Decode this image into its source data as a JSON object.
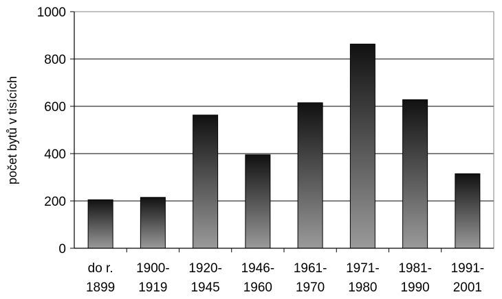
{
  "chart_data": {
    "type": "bar",
    "title": "",
    "xlabel": "",
    "ylabel": "počet bytů v tisících",
    "ylim": [
      0,
      1000
    ],
    "yticks": [
      0,
      200,
      400,
      600,
      800,
      1000
    ],
    "grid": "horizontal",
    "categories": [
      [
        "do r.",
        "1899"
      ],
      [
        "1900-",
        "1919"
      ],
      [
        "1920-",
        "1945"
      ],
      [
        "1946-",
        "1960"
      ],
      [
        "1961-",
        "1970"
      ],
      [
        "1971-",
        "1980"
      ],
      [
        "1981-",
        "1990"
      ],
      [
        "1991-",
        "2001"
      ]
    ],
    "values": [
      205,
      215,
      563,
      395,
      615,
      863,
      628,
      315
    ],
    "bar_gradient": [
      "#111111",
      "#9a9a9a"
    ]
  }
}
